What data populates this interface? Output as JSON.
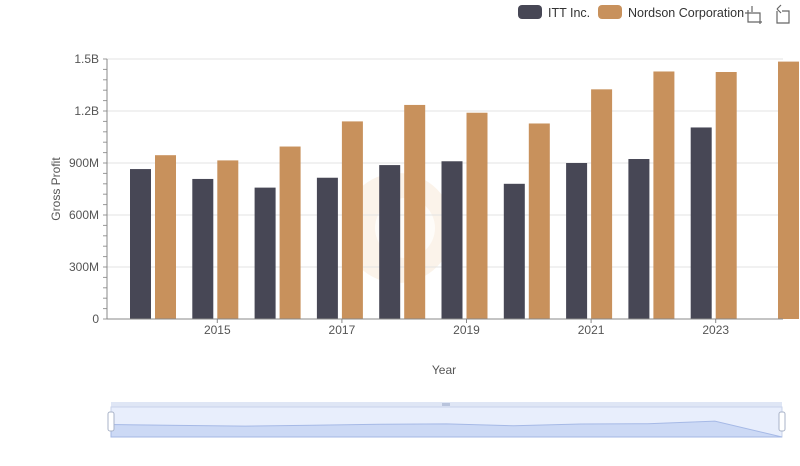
{
  "legend": {
    "items": [
      {
        "label": "ITT Inc.",
        "color": "#474755"
      },
      {
        "label": "Nordson Corporation",
        "color": "#c8915c"
      }
    ],
    "placement": "top-right"
  },
  "toolbar": {
    "icons": [
      "zoom-select-icon",
      "zoom-reset-icon"
    ]
  },
  "chart_data": {
    "type": "bar",
    "title": "",
    "xlabel": "Year",
    "ylabel": "Gross Profit",
    "categories": [
      "2014",
      "2015",
      "2016",
      "2017",
      "2018",
      "2019",
      "2020",
      "2021",
      "2022",
      "2023",
      "2024"
    ],
    "x_tick_labels": [
      "2015",
      "2017",
      "2019",
      "2021",
      "2023"
    ],
    "y_tick_labels": [
      "0",
      "300M",
      "600M",
      "900M",
      "1.2B",
      "1.5B"
    ],
    "y_tick_values": [
      0,
      300000000,
      600000000,
      900000000,
      1200000000,
      1500000000
    ],
    "ylim": [
      0,
      1500000000
    ],
    "grid": true,
    "series": [
      {
        "name": "ITT Inc.",
        "color": "#474755",
        "values": [
          865000000,
          808000000,
          758000000,
          815000000,
          888000000,
          910000000,
          780000000,
          900000000,
          923000000,
          1105000000,
          null
        ]
      },
      {
        "name": "Nordson Corporation",
        "color": "#c8915c",
        "values": [
          945000000,
          915000000,
          995000000,
          1140000000,
          1235000000,
          1190000000,
          1128000000,
          1325000000,
          1428000000,
          1425000000,
          1485000000
        ]
      }
    ],
    "range_slider": {
      "visible": true
    }
  }
}
